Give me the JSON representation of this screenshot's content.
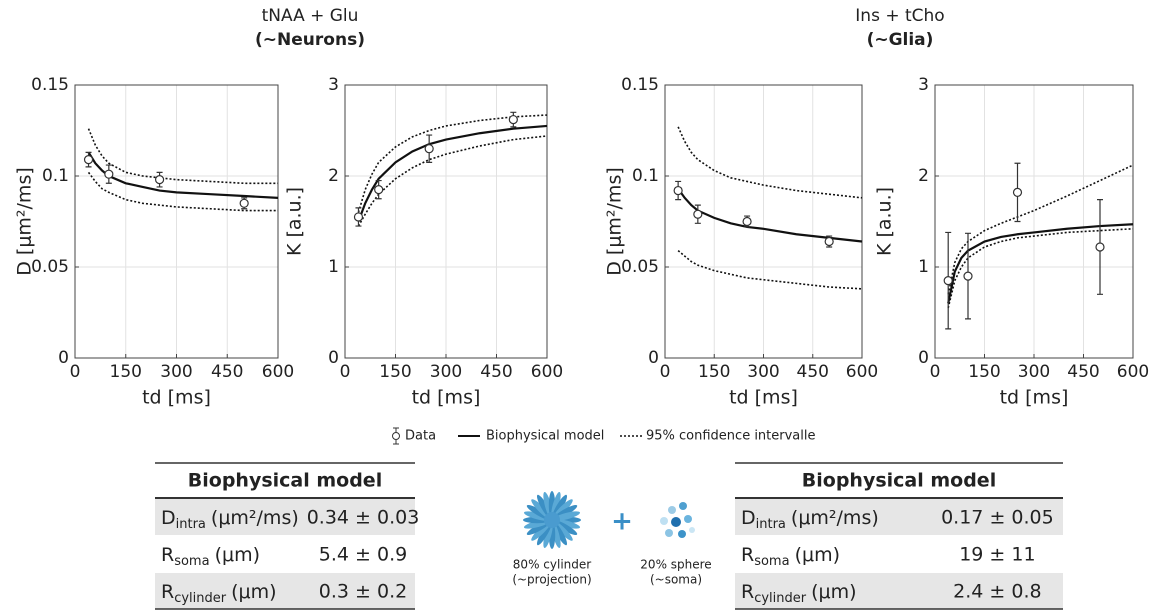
{
  "groups": [
    {
      "title": "tNAA + Glu",
      "subtitle": "(~Neurons)"
    },
    {
      "title": "Ins + tCho",
      "subtitle": "(~Glia)"
    }
  ],
  "chart_data": [
    {
      "type": "line",
      "xlabel": "td [ms]",
      "ylabel": "D [μm²/ms]",
      "xlim": [
        0,
        600
      ],
      "xticks": [
        0,
        150,
        300,
        450,
        600
      ],
      "ylim": [
        0,
        0.15
      ],
      "yticks": [
        0,
        0.05,
        0.1,
        0.15
      ],
      "grid": true,
      "x": [
        40,
        100,
        250,
        500
      ],
      "values": [
        0.109,
        0.101,
        0.098,
        0.085
      ],
      "errors": [
        0.004,
        0.005,
        0.004,
        0.003
      ],
      "model": {
        "x": [
          40,
          60,
          80,
          100,
          150,
          200,
          250,
          300,
          400,
          500,
          600
        ],
        "values": [
          0.113,
          0.107,
          0.103,
          0.1,
          0.096,
          0.094,
          0.092,
          0.091,
          0.09,
          0.089,
          0.088
        ]
      },
      "ci_upper": [
        0.126,
        0.117,
        0.111,
        0.107,
        0.102,
        0.1,
        0.099,
        0.098,
        0.097,
        0.096,
        0.096
      ],
      "ci_lower": [
        0.102,
        0.097,
        0.093,
        0.091,
        0.087,
        0.085,
        0.084,
        0.083,
        0.082,
        0.081,
        0.081
      ]
    },
    {
      "type": "line",
      "xlabel": "td [ms]",
      "ylabel": "K [a.u.]",
      "xlim": [
        0,
        600
      ],
      "xticks": [
        0,
        150,
        300,
        450,
        600
      ],
      "ylim": [
        0,
        3
      ],
      "yticks": [
        0,
        1,
        2,
        3
      ],
      "grid": true,
      "x": [
        40,
        100,
        250,
        500
      ],
      "values": [
        1.55,
        1.85,
        2.3,
        2.62
      ],
      "errors": [
        0.1,
        0.1,
        0.15,
        0.08
      ],
      "model": {
        "x": [
          40,
          60,
          80,
          100,
          150,
          200,
          250,
          300,
          400,
          500,
          600
        ],
        "values": [
          1.5,
          1.7,
          1.85,
          1.97,
          2.15,
          2.27,
          2.35,
          2.4,
          2.47,
          2.52,
          2.55
        ]
      },
      "ci_upper": [
        1.6,
        1.85,
        2.02,
        2.15,
        2.32,
        2.43,
        2.5,
        2.55,
        2.61,
        2.65,
        2.67
      ],
      "ci_lower": [
        1.45,
        1.58,
        1.7,
        1.8,
        1.97,
        2.09,
        2.18,
        2.24,
        2.33,
        2.4,
        2.44
      ]
    },
    {
      "type": "line",
      "xlabel": "td [ms]",
      "ylabel": "D [μm²/ms]",
      "xlim": [
        0,
        600
      ],
      "xticks": [
        0,
        150,
        300,
        450,
        600
      ],
      "ylim": [
        0,
        0.15
      ],
      "yticks": [
        0,
        0.05,
        0.1,
        0.15
      ],
      "grid": true,
      "x": [
        40,
        100,
        250,
        500
      ],
      "values": [
        0.092,
        0.079,
        0.075,
        0.064
      ],
      "errors": [
        0.005,
        0.005,
        0.003,
        0.003
      ],
      "model": {
        "x": [
          40,
          60,
          80,
          100,
          150,
          200,
          250,
          300,
          400,
          500,
          600
        ],
        "values": [
          0.093,
          0.088,
          0.084,
          0.081,
          0.077,
          0.074,
          0.072,
          0.071,
          0.068,
          0.066,
          0.064
        ]
      },
      "ci_upper": [
        0.127,
        0.119,
        0.113,
        0.109,
        0.103,
        0.099,
        0.097,
        0.095,
        0.092,
        0.09,
        0.088
      ],
      "ci_lower": [
        0.059,
        0.056,
        0.053,
        0.051,
        0.048,
        0.046,
        0.044,
        0.043,
        0.041,
        0.039,
        0.038
      ]
    },
    {
      "type": "line",
      "xlabel": "td [ms]",
      "ylabel": "K [a.u.]",
      "xlim": [
        0,
        600
      ],
      "xticks": [
        0,
        150,
        300,
        450,
        600
      ],
      "ylim": [
        0,
        3
      ],
      "yticks": [
        0,
        1,
        2,
        3
      ],
      "grid": true,
      "x": [
        40,
        100,
        250,
        500
      ],
      "values": [
        0.85,
        0.9,
        1.82,
        1.22
      ],
      "errors": [
        0.53,
        0.47,
        0.32,
        0.52
      ],
      "model": {
        "x": [
          40,
          60,
          80,
          100,
          150,
          200,
          250,
          300,
          400,
          500,
          600
        ],
        "values": [
          0.6,
          0.95,
          1.1,
          1.18,
          1.28,
          1.33,
          1.36,
          1.38,
          1.42,
          1.45,
          1.47
        ]
      },
      "ci_upper": [
        0.7,
        1.05,
        1.2,
        1.28,
        1.4,
        1.48,
        1.55,
        1.62,
        1.78,
        1.95,
        2.12
      ],
      "ci_lower": [
        0.55,
        0.85,
        1.0,
        1.1,
        1.22,
        1.28,
        1.32,
        1.34,
        1.38,
        1.4,
        1.42
      ]
    }
  ],
  "legend": [
    "Data",
    "Biophysical model",
    "95% confidence intervalle"
  ],
  "tables": [
    {
      "title": "Biophysical model",
      "rows": [
        {
          "symbol": "D",
          "sub": "intra",
          "unit": "(μm²/ms)",
          "value": "0.34 ± 0.03"
        },
        {
          "symbol": "R",
          "sub": "soma",
          "unit": "(μm)",
          "value": "5.4 ± 0.9"
        },
        {
          "symbol": "R",
          "sub": "cylinder",
          "unit": "(μm)",
          "value": "0.3 ± 0.2"
        }
      ]
    },
    {
      "title": "Biophysical model",
      "rows": [
        {
          "symbol": "D",
          "sub": "intra",
          "unit": "(μm²/ms)",
          "value": "0.17 ± 0.05"
        },
        {
          "symbol": "R",
          "sub": "soma",
          "unit": "(μm)",
          "value": "19 ± 11"
        },
        {
          "symbol": "R",
          "sub": "cylinder",
          "unit": "(μm)",
          "value": "2.4 ± 0.8"
        }
      ]
    }
  ],
  "diagram": {
    "plus": "+",
    "cylinder_label": "80% cylinder",
    "cylinder_note": "(~projection)",
    "sphere_label": "20% sphere",
    "sphere_note": "(~soma)"
  }
}
